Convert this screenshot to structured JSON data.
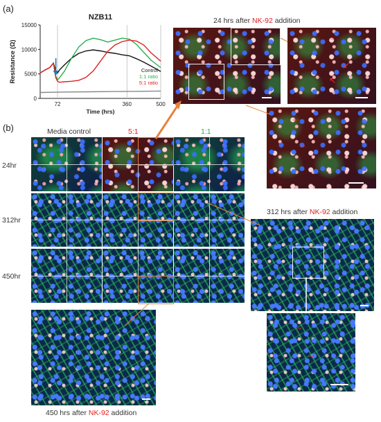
{
  "panel_a_label": "(a)",
  "panel_b_label": "(b)",
  "chart_title": "NZB11",
  "chart_data": {
    "type": "line",
    "title": "NZB11",
    "xlabel": "Time (hrs)",
    "ylabel": "Resistance (Ω)",
    "xlim": [
      0,
      500
    ],
    "ylim": [
      0,
      15000
    ],
    "x_ticks": [
      "72",
      "360",
      "500"
    ],
    "y_ticks": [
      "0",
      "5000",
      "10000",
      "15000"
    ],
    "legend_position": "bottom-right",
    "series": [
      {
        "name": "Control",
        "color": "#111111",
        "x": [
          0,
          20,
          40,
          55,
          65,
          72,
          80,
          100,
          130,
          160,
          190,
          220,
          250,
          280,
          310,
          340,
          370,
          400,
          430,
          460,
          500
        ],
        "y": [
          5200,
          5800,
          6300,
          7200,
          5600,
          5200,
          5800,
          6800,
          8200,
          9200,
          9700,
          9900,
          9700,
          9400,
          9200,
          8900,
          8700,
          8100,
          7400,
          6600,
          5500
        ]
      },
      {
        "name": "1:1 ratio",
        "color": "#22b14c",
        "x": [
          0,
          20,
          40,
          55,
          65,
          72,
          80,
          100,
          130,
          160,
          190,
          220,
          250,
          280,
          310,
          340,
          370,
          400,
          430,
          460,
          500
        ],
        "y": [
          5200,
          5800,
          6300,
          7200,
          4500,
          3800,
          4200,
          5500,
          8200,
          10500,
          11800,
          12300,
          12000,
          11500,
          11900,
          12300,
          12100,
          11000,
          9400,
          7800,
          6300
        ]
      },
      {
        "name": "5:1 ratio",
        "color": "#e02020",
        "x": [
          0,
          20,
          40,
          55,
          65,
          72,
          80,
          100,
          130,
          160,
          190,
          220,
          250,
          280,
          310,
          340,
          370,
          400,
          430,
          460,
          500
        ],
        "y": [
          5200,
          5800,
          6300,
          7200,
          4200,
          3500,
          3300,
          3400,
          3500,
          3700,
          4300,
          5600,
          7600,
          9600,
          10900,
          11600,
          11900,
          11700,
          10900,
          9300,
          7600
        ]
      },
      {
        "name": "",
        "color": "#888888",
        "x": [
          0,
          100,
          200,
          300,
          400,
          500
        ],
        "y": [
          1200,
          1300,
          1350,
          1400,
          1450,
          1500
        ]
      }
    ],
    "annotations": [
      {
        "type": "arrow",
        "x": 65,
        "color": "#1a7fb0"
      }
    ]
  },
  "top_caption": {
    "prefix": "24 hrs after ",
    "highlight": "NK-92",
    "suffix": " addition"
  },
  "mid_caption": {
    "prefix": "312 hrs after ",
    "highlight": "NK-92",
    "suffix": " addition"
  },
  "bottom_caption": {
    "prefix": "450 hrs after ",
    "highlight": "NK-92",
    "suffix": " addition"
  },
  "column_headers": [
    {
      "text": "Media control",
      "color": "#333333"
    },
    {
      "text": "5:1",
      "color": "#e02020"
    },
    {
      "text": "1:1",
      "color": "#22b14c"
    }
  ],
  "row_labels": [
    "24hr",
    "312hr",
    "450hr"
  ],
  "colors": {
    "accent_orange": "#e8803a",
    "control": "#111111",
    "green": "#22b14c",
    "red": "#e02020"
  }
}
